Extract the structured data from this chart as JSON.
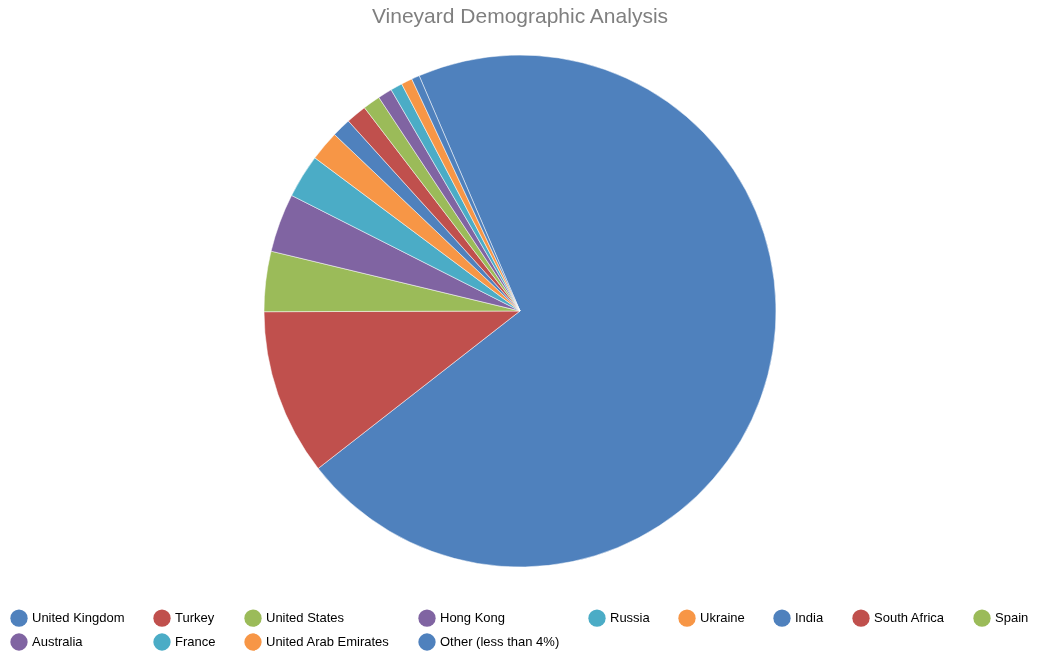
{
  "chart_data": {
    "type": "pie",
    "title": "Vineyard Demographic Analysis",
    "categories": [
      "United Kingdom",
      "Turkey",
      "United States",
      "Hong Kong",
      "Russia",
      "Ukraine",
      "India",
      "South Africa",
      "Spain",
      "Australia",
      "France",
      "United Arab Emirates",
      "Other (less than 4%)"
    ],
    "values": [
      70.9,
      10.5,
      3.8,
      3.7,
      2.75,
      1.9,
      1.2,
      1.3,
      1.1,
      0.9,
      0.75,
      0.7,
      0.5
    ],
    "colors": [
      "#4f81bd",
      "#c0504d",
      "#9bbb59",
      "#8064a2",
      "#4bacc6",
      "#f79646",
      "#4f81bd",
      "#c0504d",
      "#9bbb59",
      "#8064a2",
      "#4bacc6",
      "#f79646",
      "#4f81bd"
    ],
    "legend": "bottom"
  }
}
